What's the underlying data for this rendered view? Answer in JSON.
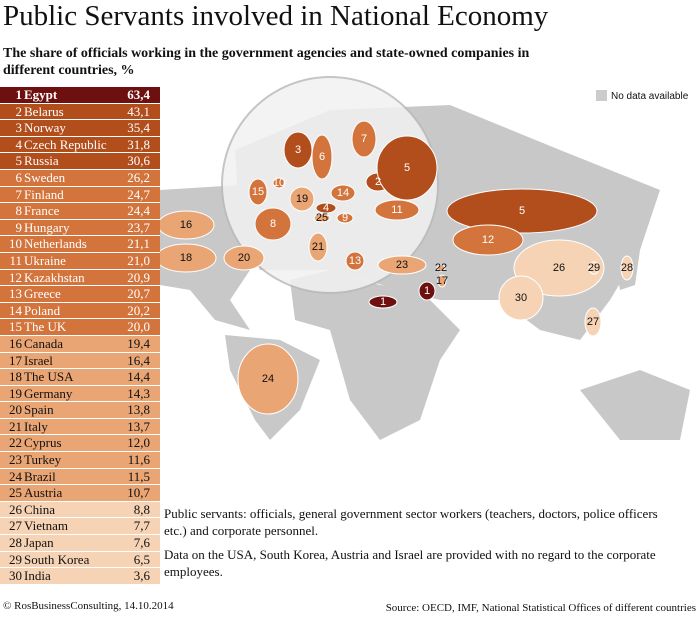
{
  "title": "Public Servants involved in National Economy",
  "subtitle": "The share of officials working in the government agencies and state-owned companies in different countries, %",
  "legend": "No data available",
  "ranking": [
    {
      "rank": 1,
      "country": "Egypt",
      "value": "63,4"
    },
    {
      "rank": 2,
      "country": "Belarus",
      "value": "43,1"
    },
    {
      "rank": 3,
      "country": "Norway",
      "value": "35,4"
    },
    {
      "rank": 4,
      "country": "Czech Republic",
      "value": "31,8"
    },
    {
      "rank": 5,
      "country": "Russia",
      "value": "30,6"
    },
    {
      "rank": 6,
      "country": "Sweden",
      "value": "26,2"
    },
    {
      "rank": 7,
      "country": "Finland",
      "value": "24,7"
    },
    {
      "rank": 8,
      "country": "France",
      "value": "24,4"
    },
    {
      "rank": 9,
      "country": "Hungary",
      "value": "23,7"
    },
    {
      "rank": 10,
      "country": "Netherlands",
      "value": "21,1"
    },
    {
      "rank": 11,
      "country": "Ukraine",
      "value": "21,0"
    },
    {
      "rank": 12,
      "country": "Kazakhstan",
      "value": "20,9"
    },
    {
      "rank": 13,
      "country": "Greece",
      "value": "20,7"
    },
    {
      "rank": 14,
      "country": "Poland",
      "value": "20,2"
    },
    {
      "rank": 15,
      "country": "The UK",
      "value": "20,0"
    },
    {
      "rank": 16,
      "country": "Canada",
      "value": "19,4"
    },
    {
      "rank": 17,
      "country": "Israel",
      "value": "16,4"
    },
    {
      "rank": 18,
      "country": "The USA",
      "value": "14,4"
    },
    {
      "rank": 19,
      "country": "Germany",
      "value": "14,3"
    },
    {
      "rank": 20,
      "country": "Spain",
      "value": "13,8"
    },
    {
      "rank": 21,
      "country": "Italy",
      "value": "13,7"
    },
    {
      "rank": 22,
      "country": "Cyprus",
      "value": "12,0"
    },
    {
      "rank": 23,
      "country": "Turkey",
      "value": "11,6"
    },
    {
      "rank": 24,
      "country": "Brazil",
      "value": "11,5"
    },
    {
      "rank": 25,
      "country": "Austria",
      "value": "10,7"
    },
    {
      "rank": 26,
      "country": "China",
      "value": "8,8"
    },
    {
      "rank": 27,
      "country": "Vietnam",
      "value": "7,7"
    },
    {
      "rank": 28,
      "country": "Japan",
      "value": "7,6"
    },
    {
      "rank": 29,
      "country": "South Korea",
      "value": "6,5"
    },
    {
      "rank": 30,
      "country": "India",
      "value": "3,6"
    }
  ],
  "notes": [
    "Public servants: officials, general government sector workers (teachers, doctors, police officers etc.) and corporate personnel.",
    "Data on the USA, South Korea, Austria and Israel are provided with no regard to the corporate employees."
  ],
  "footer": {
    "credit": "© RosBusinessConsulting, 14.10.2014",
    "source": "Source: OECD, IMF, National Statistical Offices of different countries"
  }
}
